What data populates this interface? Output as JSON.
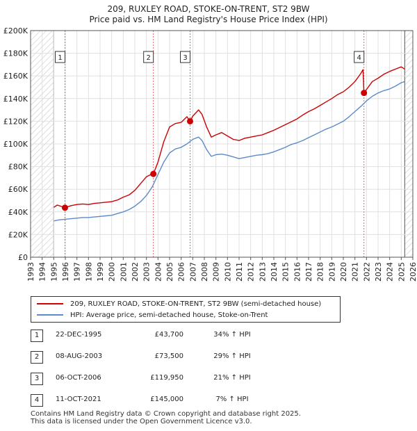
{
  "chart_data": {
    "type": "line",
    "title": "209, RUXLEY ROAD, STOKE-ON-TRENT, ST2 9BW",
    "subtitle": "Price paid vs. HM Land Registry's House Price Index (HPI)",
    "xlabel": "",
    "ylabel": "",
    "xlim": [
      1993,
      2026
    ],
    "ylim": [
      0,
      200000
    ],
    "x_ticks": [
      "1993",
      "1994",
      "1995",
      "1996",
      "1997",
      "1998",
      "1999",
      "2000",
      "2001",
      "2002",
      "2003",
      "2004",
      "2005",
      "2006",
      "2007",
      "2008",
      "2009",
      "2010",
      "2011",
      "2012",
      "2013",
      "2014",
      "2015",
      "2016",
      "2017",
      "2018",
      "2019",
      "2020",
      "2021",
      "2022",
      "2023",
      "2024",
      "2025",
      "2026"
    ],
    "y_ticks": [
      {
        "value": 0,
        "label": "£0"
      },
      {
        "value": 20000,
        "label": "£20K"
      },
      {
        "value": 40000,
        "label": "£40K"
      },
      {
        "value": 60000,
        "label": "£60K"
      },
      {
        "value": 80000,
        "label": "£80K"
      },
      {
        "value": 100000,
        "label": "£100K"
      },
      {
        "value": 120000,
        "label": "£120K"
      },
      {
        "value": 140000,
        "label": "£140K"
      },
      {
        "value": 160000,
        "label": "£160K"
      },
      {
        "value": 180000,
        "label": "£180K"
      },
      {
        "value": 200000,
        "label": "£200K"
      }
    ],
    "grid": true,
    "series": [
      {
        "name": "209, RUXLEY ROAD, STOKE-ON-TRENT, ST2 9BW (semi-detached house)",
        "color": "#cc0000",
        "x": [
          1995.0,
          1995.3,
          1995.6,
          1995.97,
          1996.5,
          1997.0,
          1997.5,
          1998.0,
          1998.5,
          1999.0,
          1999.5,
          2000.0,
          2000.5,
          2001.0,
          2001.5,
          2002.0,
          2002.5,
          2003.0,
          2003.3,
          2003.6,
          2004.0,
          2004.5,
          2005.0,
          2005.5,
          2006.0,
          2006.5,
          2006.77,
          2007.0,
          2007.5,
          2007.8,
          2008.2,
          2008.6,
          2009.0,
          2009.5,
          2010.0,
          2010.5,
          2011.0,
          2011.5,
          2012.0,
          2012.5,
          2013.0,
          2013.5,
          2014.0,
          2014.5,
          2015.0,
          2015.5,
          2016.0,
          2016.5,
          2017.0,
          2017.5,
          2018.0,
          2018.5,
          2019.0,
          2019.5,
          2020.0,
          2020.5,
          2021.0,
          2021.5,
          2021.7,
          2021.78,
          2022.0,
          2022.5,
          2023.0,
          2023.5,
          2024.0,
          2024.5,
          2025.0,
          2025.3
        ],
        "values": [
          44000,
          46000,
          45000,
          43700,
          45500,
          46500,
          47000,
          46500,
          47500,
          48000,
          48500,
          49000,
          50500,
          53000,
          55000,
          59000,
          65000,
          71000,
          72500,
          73500,
          84000,
          102000,
          115000,
          118000,
          119000,
          124000,
          119950,
          124500,
          130000,
          126000,
          115000,
          106000,
          108000,
          110000,
          107000,
          104000,
          103000,
          105000,
          106000,
          107000,
          108000,
          110000,
          112000,
          114500,
          117000,
          119500,
          122000,
          125500,
          128500,
          131000,
          134000,
          137000,
          140000,
          143500,
          146000,
          150000,
          155000,
          162000,
          165500,
          145000,
          148000,
          155000,
          158000,
          161500,
          164000,
          166000,
          168000,
          166000
        ]
      },
      {
        "name": "HPI: Average price, semi-detached house, Stoke-on-Trent",
        "color": "#5b8ac9",
        "x": [
          1995.0,
          1995.5,
          1996.0,
          1996.5,
          1997.0,
          1997.5,
          1998.0,
          1998.5,
          1999.0,
          1999.5,
          2000.0,
          2000.5,
          2001.0,
          2001.5,
          2002.0,
          2002.5,
          2003.0,
          2003.5,
          2004.0,
          2004.5,
          2005.0,
          2005.5,
          2006.0,
          2006.5,
          2007.0,
          2007.5,
          2007.8,
          2008.2,
          2008.6,
          2009.0,
          2009.5,
          2010.0,
          2010.5,
          2011.0,
          2011.5,
          2012.0,
          2012.5,
          2013.0,
          2013.5,
          2014.0,
          2014.5,
          2015.0,
          2015.5,
          2016.0,
          2016.5,
          2017.0,
          2017.5,
          2018.0,
          2018.5,
          2019.0,
          2019.5,
          2020.0,
          2020.5,
          2021.0,
          2021.5,
          2022.0,
          2022.5,
          2023.0,
          2023.5,
          2024.0,
          2024.5,
          2025.0,
          2025.3
        ],
        "values": [
          32000,
          33000,
          33500,
          34000,
          34500,
          35000,
          35000,
          35500,
          36000,
          36500,
          37000,
          38500,
          40000,
          42000,
          45000,
          49000,
          54500,
          62000,
          73000,
          84000,
          92000,
          95500,
          97000,
          100000,
          104000,
          106000,
          103000,
          95000,
          89000,
          90500,
          91000,
          90000,
          88500,
          87000,
          88000,
          89000,
          90000,
          90500,
          91500,
          93000,
          95000,
          97000,
          99500,
          101000,
          103000,
          105500,
          108000,
          110500,
          113000,
          115000,
          117500,
          120000,
          124000,
          128500,
          133000,
          138000,
          142000,
          145000,
          147000,
          148500,
          151000,
          154000,
          155000
        ]
      }
    ],
    "annotations": [
      {
        "label": "1",
        "x": 1995.97,
        "y": 43700
      },
      {
        "label": "2",
        "x": 2003.6,
        "y": 73500
      },
      {
        "label": "3",
        "x": 2006.77,
        "y": 119950
      },
      {
        "label": "4",
        "x": 2021.78,
        "y": 145000
      }
    ],
    "hatched_regions": [
      [
        1993,
        1995.0
      ],
      [
        2025.3,
        2026
      ]
    ]
  },
  "legend": {
    "property_label": "209, RUXLEY ROAD, STOKE-ON-TRENT, ST2 9BW (semi-detached house)",
    "hpi_label": "HPI: Average price, semi-detached house, Stoke-on-Trent"
  },
  "transactions": [
    {
      "num": "1",
      "date": "22-DEC-1995",
      "price": "£43,700",
      "hpi": "34% ↑ HPI"
    },
    {
      "num": "2",
      "date": "08-AUG-2003",
      "price": "£73,500",
      "hpi": "29% ↑ HPI"
    },
    {
      "num": "3",
      "date": "06-OCT-2006",
      "price": "£119,950",
      "hpi": "21% ↑ HPI"
    },
    {
      "num": "4",
      "date": "11-OCT-2021",
      "price": "£145,000",
      "hpi": "7% ↑ HPI"
    }
  ],
  "footer": {
    "line1": "Contains HM Land Registry data © Crown copyright and database right 2025.",
    "line2": "This data is licensed under the Open Government Licence v3.0."
  }
}
